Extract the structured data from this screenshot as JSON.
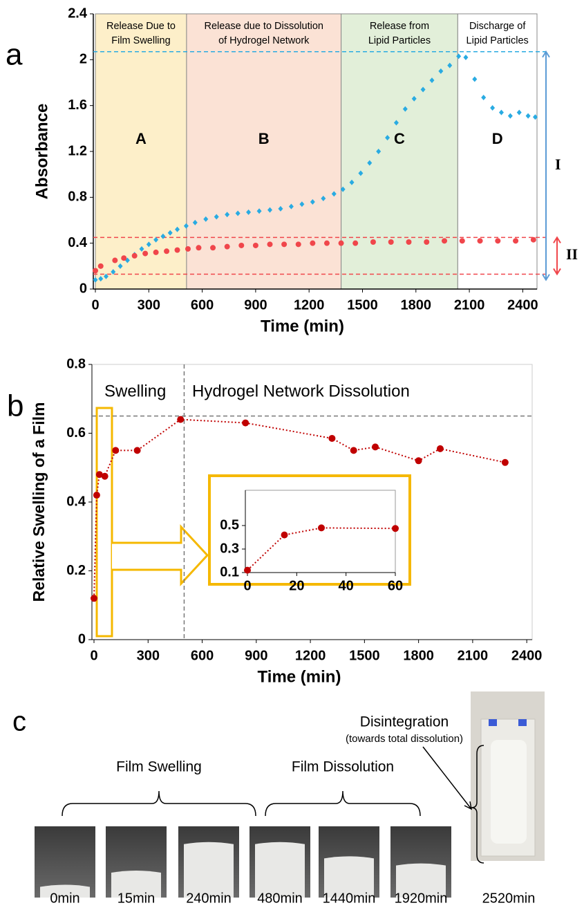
{
  "chart_data": [
    {
      "type": "scatter",
      "panel_label": "a",
      "x_label": "Time (min)",
      "y_label": "Absorbance",
      "xlim": [
        0,
        2480
      ],
      "ylim": [
        0,
        2.4
      ],
      "xticks": [
        0,
        300,
        600,
        900,
        1200,
        1500,
        1800,
        2100,
        2400
      ],
      "yticks": [
        0,
        0.4,
        0.8,
        1.2,
        1.6,
        2,
        2.4
      ],
      "regions": [
        {
          "start": 0,
          "end": 512,
          "color": "#fdefc9",
          "title_lines": [
            "Release Due to",
            "Film Swelling"
          ],
          "letter": "A"
        },
        {
          "start": 512,
          "end": 1380,
          "color": "#fbe2d5",
          "title_lines": [
            "Release due to Dissolution",
            "of Hydrogel Network"
          ],
          "letter": "B"
        },
        {
          "start": 1380,
          "end": 2035,
          "color": "#e2efd9",
          "title_lines": [
            "Release from",
            "Lipid Particles"
          ],
          "letter": "C"
        },
        {
          "start": 2035,
          "end": 2480,
          "color": "#ffffff",
          "title_lines": [
            "Discharge of",
            "Lipid Particles"
          ],
          "letter": "D"
        }
      ],
      "ref_lines": [
        {
          "y": 2.07,
          "color": "#29abe2"
        },
        {
          "y": 0.45,
          "color": "#f0464b"
        },
        {
          "y": 0.13,
          "color": "#f0464b"
        }
      ],
      "brackets": [
        {
          "label": "I",
          "from": 0.08,
          "to": 2.07,
          "color": "#5b9bd5"
        },
        {
          "label": "II",
          "from": 0.13,
          "to": 0.45,
          "color": "#f0464b"
        }
      ],
      "series": [
        {
          "color": "#29abe2",
          "marker": "diamond",
          "x": [
            0,
            30,
            60,
            100,
            140,
            180,
            220,
            260,
            300,
            340,
            380,
            420,
            460,
            510,
            560,
            620,
            680,
            740,
            800,
            860,
            920,
            980,
            1040,
            1100,
            1160,
            1220,
            1280,
            1340,
            1390,
            1440,
            1490,
            1540,
            1590,
            1640,
            1690,
            1740,
            1790,
            1840,
            1890,
            1940,
            1990,
            2040,
            2080,
            2130,
            2180,
            2230,
            2280,
            2330,
            2380,
            2430,
            2470
          ],
          "values": [
            0.08,
            0.09,
            0.11,
            0.15,
            0.2,
            0.25,
            0.3,
            0.35,
            0.39,
            0.43,
            0.46,
            0.49,
            0.52,
            0.55,
            0.58,
            0.61,
            0.63,
            0.65,
            0.66,
            0.67,
            0.68,
            0.69,
            0.7,
            0.72,
            0.74,
            0.76,
            0.79,
            0.83,
            0.87,
            0.93,
            1.01,
            1.1,
            1.2,
            1.32,
            1.45,
            1.57,
            1.66,
            1.74,
            1.82,
            1.9,
            1.95,
            2.03,
            2.02,
            1.83,
            1.67,
            1.58,
            1.54,
            1.51,
            1.54,
            1.51,
            1.5
          ]
        },
        {
          "color": "#f0464b",
          "marker": "circle",
          "x": [
            0,
            30,
            110,
            160,
            220,
            280,
            340,
            400,
            460,
            520,
            580,
            660,
            740,
            820,
            900,
            980,
            1060,
            1140,
            1220,
            1300,
            1380,
            1460,
            1560,
            1660,
            1760,
            1860,
            1960,
            2060,
            2160,
            2260,
            2360,
            2460
          ],
          "values": [
            0.16,
            0.2,
            0.25,
            0.27,
            0.29,
            0.31,
            0.32,
            0.33,
            0.34,
            0.35,
            0.36,
            0.36,
            0.37,
            0.38,
            0.38,
            0.39,
            0.39,
            0.39,
            0.4,
            0.4,
            0.4,
            0.4,
            0.41,
            0.41,
            0.41,
            0.41,
            0.42,
            0.42,
            0.42,
            0.42,
            0.42,
            0.43
          ]
        }
      ]
    },
    {
      "type": "line",
      "panel_label": "b",
      "x_label": "Time (min)",
      "y_label": "Relative Swelling of a Film",
      "xlim": [
        0,
        2430
      ],
      "ylim": [
        0,
        0.8
      ],
      "xticks": [
        0,
        300,
        600,
        900,
        1200,
        1500,
        1800,
        2100,
        2400
      ],
      "yticks": [
        0,
        0.2,
        0.4,
        0.6,
        0.8
      ],
      "annotations": [
        "Swelling",
        "Hydrogel Network Dissolution"
      ],
      "ref_lines": [
        {
          "y": 0.65,
          "color": "#777777"
        },
        {
          "x": 500,
          "color": "#777777"
        }
      ],
      "x": [
        0,
        15,
        30,
        60,
        120,
        240,
        480,
        840,
        1320,
        1440,
        1560,
        1800,
        1920,
        2280
      ],
      "series": [
        {
          "color": "#c00000",
          "marker": "circle",
          "values": [
            0.12,
            0.42,
            0.48,
            0.475,
            0.55,
            0.55,
            0.64,
            0.63,
            0.585,
            0.55,
            0.56,
            0.52,
            0.555,
            0.515
          ]
        }
      ]
    },
    {
      "type": "line",
      "xlim": [
        0,
        60
      ],
      "ylim": [
        0.1,
        0.8
      ],
      "xticks": [
        0,
        20,
        40,
        60
      ],
      "yticks": [
        0.1,
        0.3,
        0.5
      ],
      "x": [
        0,
        15,
        30,
        60
      ],
      "series": [
        {
          "color": "#c00000",
          "marker": "circle",
          "values": [
            0.12,
            0.42,
            0.48,
            0.475
          ]
        }
      ]
    }
  ],
  "panel_c": {
    "label": "c",
    "groups": [
      "Film Swelling",
      "Film Dissolution"
    ],
    "disintegration": "Disintegration",
    "disintegration_note": "(towards total dissolution)",
    "photos": [
      "0min",
      "15min",
      "240min",
      "480min",
      "1440min",
      "1920min",
      "2520min"
    ]
  }
}
